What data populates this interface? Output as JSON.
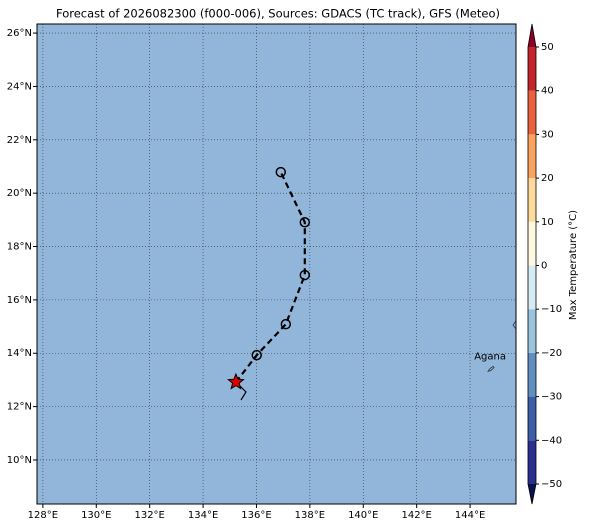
{
  "chart_data": {
    "type": "map",
    "title": "Forecast of 2026082300 (f000-006), Sources: GDACS (TC track), GFS (Meteo)",
    "background_color": "#92b5da",
    "grid": true,
    "xlim": [
      127.78,
      145.72
    ],
    "ylim": [
      8.35,
      26.34
    ],
    "xticks": [
      {
        "value": 128,
        "label": "128°E"
      },
      {
        "value": 130,
        "label": "130°E"
      },
      {
        "value": 132,
        "label": "132°E"
      },
      {
        "value": 134,
        "label": "134°E"
      },
      {
        "value": 136,
        "label": "136°E"
      },
      {
        "value": 138,
        "label": "138°E"
      },
      {
        "value": 140,
        "label": "140°E"
      },
      {
        "value": 142,
        "label": "142°E"
      },
      {
        "value": 144,
        "label": "144°E"
      }
    ],
    "yticks": [
      {
        "value": 10,
        "label": "10°N"
      },
      {
        "value": 12,
        "label": "12°N"
      },
      {
        "value": 14,
        "label": "14°N"
      },
      {
        "value": 16,
        "label": "16°N"
      },
      {
        "value": 18,
        "label": "18°N"
      },
      {
        "value": 20,
        "label": "20°N"
      },
      {
        "value": 22,
        "label": "22°N"
      },
      {
        "value": 24,
        "label": "24°N"
      },
      {
        "value": 26,
        "label": "26°N"
      }
    ],
    "track": {
      "lon": [
        135.23,
        136.01,
        137.1,
        137.81,
        137.81,
        136.91
      ],
      "lat": [
        12.92,
        13.93,
        15.09,
        16.93,
        18.91,
        20.79
      ],
      "current_color": "#e00000"
    },
    "places": [
      {
        "name": "Agana",
        "lon": 144.75,
        "lat": 13.47
      }
    ],
    "colorbar": {
      "label": "Max Temperature (°C)",
      "lim": [
        -50,
        50
      ],
      "ticks": [
        {
          "value": -50,
          "label": "−50"
        },
        {
          "value": -40,
          "label": "−40"
        },
        {
          "value": -30,
          "label": "−30"
        },
        {
          "value": -20,
          "label": "−20"
        },
        {
          "value": -10,
          "label": "−10"
        },
        0,
        10,
        20,
        30,
        40,
        50
      ],
      "colors": [
        "#2b2f8e",
        "#3a5fa8",
        "#5f8fc0",
        "#98c4de",
        "#d5ecf4",
        "#fdf9e0",
        "#fedb9a",
        "#f9a35e",
        "#e9613d",
        "#c3232a"
      ],
      "under_color": "#07124f",
      "over_color": "#8a0026"
    }
  }
}
